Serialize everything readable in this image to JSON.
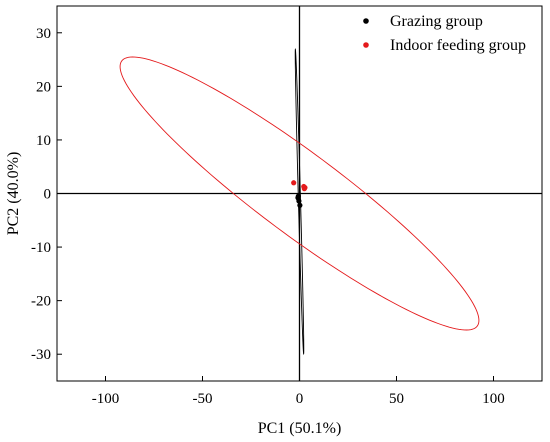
{
  "chart_data": {
    "type": "scatter",
    "title": "",
    "xlabel": "PC1 (50.1%)",
    "ylabel": "PC2 (40.0%)",
    "xlim": [
      -125,
      125
    ],
    "ylim": [
      -35,
      35
    ],
    "xticks": [
      -100,
      -50,
      0,
      50,
      100
    ],
    "yticks": [
      -30,
      -20,
      -10,
      0,
      10,
      20,
      30
    ],
    "grid": false,
    "zero_lines": true,
    "legend_position": "top-right",
    "series": [
      {
        "name": "Grazing group",
        "color": "#000000",
        "points": [
          [
            -0.8,
            -0.8
          ],
          [
            -0.3,
            -1.4
          ],
          [
            0.2,
            -2.2
          ],
          [
            -0.6,
            -0.5
          ]
        ],
        "ellipse": {
          "cx": 0,
          "cy": -1.5,
          "rx": 28.5,
          "ry": 0.55,
          "angle_deg": -85.7
        }
      },
      {
        "name": "Indoor feeding group",
        "color": "#e41a1c",
        "points": [
          [
            -3.0,
            2.0
          ],
          [
            2.2,
            1.3
          ],
          [
            2.5,
            0.9
          ],
          [
            2.8,
            1.1
          ]
        ],
        "ellipse": {
          "cx": 0,
          "cy": 0,
          "rx": 95.5,
          "ry": 9.1,
          "angle_deg": -14.5
        }
      }
    ]
  }
}
